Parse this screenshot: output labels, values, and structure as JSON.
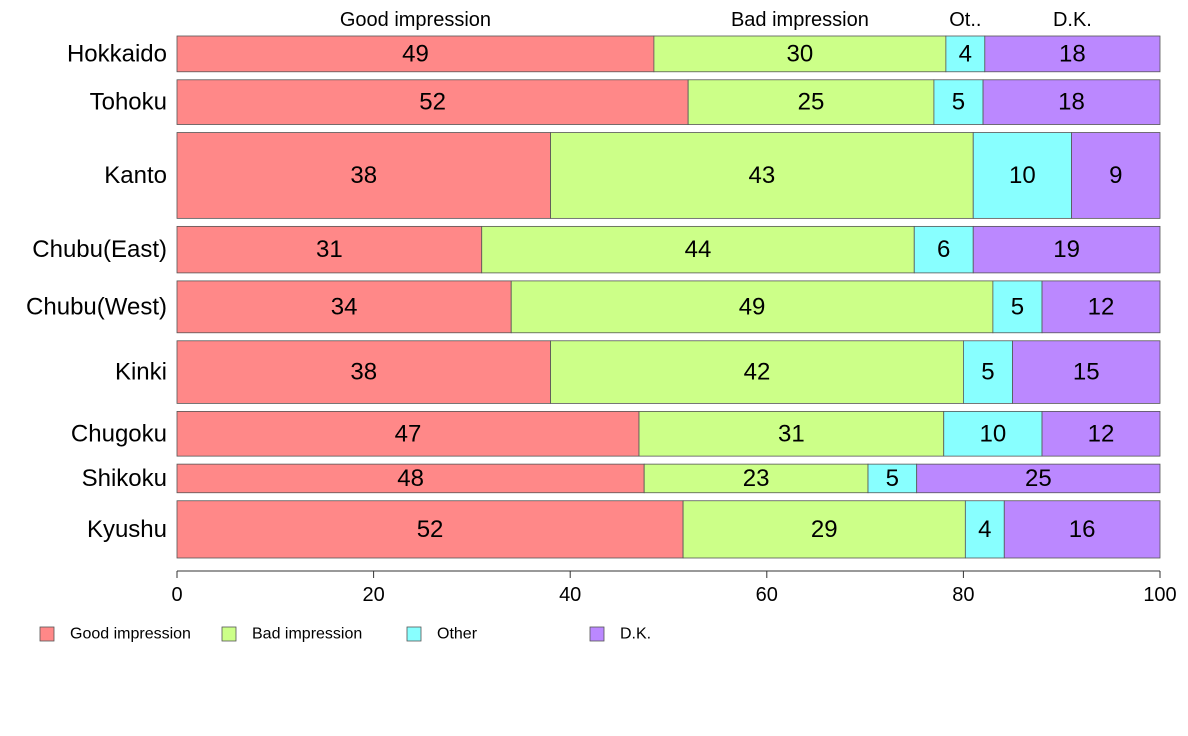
{
  "chart_data": {
    "type": "bar",
    "orientation": "horizontal",
    "stacked": true,
    "categories": [
      "Hokkaido",
      "Tohoku",
      "Kanto",
      "Chubu(East)",
      "Chubu(West)",
      "Kinki",
      "Chugoku",
      "Shikoku",
      "Kyushu"
    ],
    "bar_weights": [
      1.0,
      1.25,
      2.4,
      1.3,
      1.45,
      1.75,
      1.25,
      0.8,
      1.6
    ],
    "series": [
      {
        "name": "Good impression",
        "color": "#ff8888",
        "values": [
          49,
          52,
          38,
          31,
          34,
          38,
          47,
          48,
          52
        ]
      },
      {
        "name": "Bad impression",
        "color": "#ccff88",
        "values": [
          30,
          25,
          43,
          44,
          49,
          42,
          31,
          23,
          29
        ]
      },
      {
        "name": "Other",
        "color": "#88ffff",
        "values": [
          4,
          5,
          10,
          6,
          5,
          5,
          10,
          5,
          4
        ]
      },
      {
        "name": "D.K.",
        "color": "#bb88ff",
        "values": [
          18,
          18,
          9,
          19,
          12,
          15,
          12,
          25,
          16
        ]
      }
    ],
    "top_labels": [
      "Good impression",
      "Bad impression",
      "Ot..",
      "D.K."
    ],
    "xlim": [
      0,
      100
    ],
    "xticks": [
      0,
      20,
      40,
      60,
      80,
      100
    ],
    "title": "",
    "xlabel": "",
    "ylabel": "",
    "grid": false,
    "legend_position": "bottom-left"
  }
}
